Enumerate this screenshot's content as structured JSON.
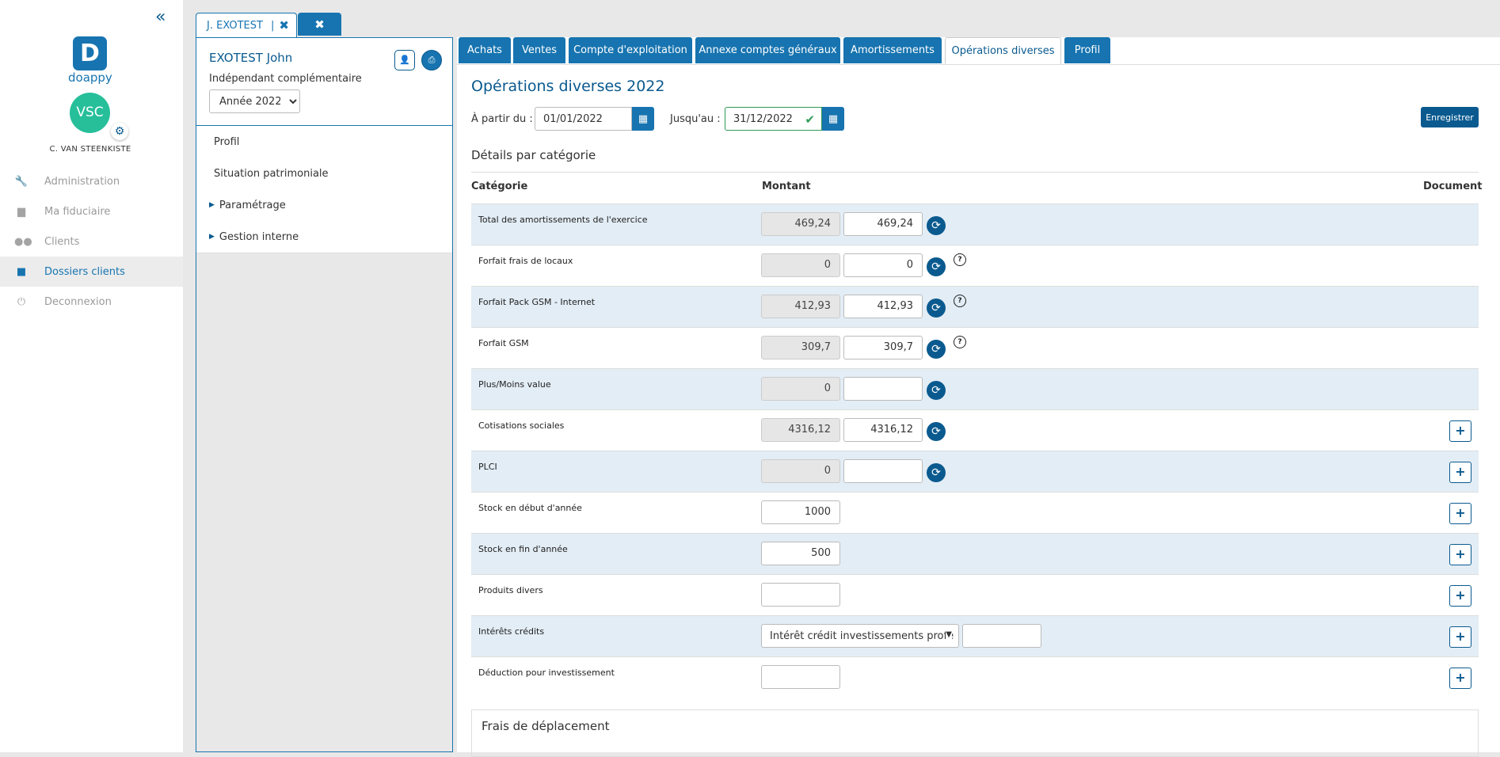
{
  "nav": {
    "collapse_icon": "double-chevron-left-icon",
    "logo_letter": "D",
    "logo_text": "doappy",
    "avatar_initials": "VSC",
    "user_name": "C. VAN STEENKISTE",
    "items": [
      {
        "label": "Administration",
        "icon": "wrench-icon"
      },
      {
        "label": "Ma fiduciaire",
        "icon": "building-icon"
      },
      {
        "label": "Clients",
        "icon": "users-icon"
      },
      {
        "label": "Dossiers clients",
        "icon": "folder-icon",
        "active": true
      },
      {
        "label": "Deconnexion",
        "icon": "power-icon"
      }
    ]
  },
  "dossier_tabs": [
    {
      "label": "J. EXOTEST"
    }
  ],
  "client": {
    "name": "EXOTEST John",
    "status": "Indépendant complémentaire",
    "year": "Année 2022",
    "menu": [
      {
        "label": "Profil"
      },
      {
        "label": "Situation patrimoniale"
      },
      {
        "label": "Paramétrage",
        "expandable": true
      },
      {
        "label": "Gestion interne",
        "expandable": true
      }
    ]
  },
  "tabs": [
    {
      "label": "Achats"
    },
    {
      "label": "Ventes"
    },
    {
      "label": "Compte d'exploitation"
    },
    {
      "label": "Annexe comptes généraux"
    },
    {
      "label": "Amortissements"
    },
    {
      "label": "Opérations diverses",
      "active": true
    },
    {
      "label": "Profil"
    }
  ],
  "page": {
    "title": "Opérations diverses 2022",
    "from_label": "À partir du :",
    "from_value": "01/01/2022",
    "to_label": "Jusqu'au :",
    "to_value": "31/12/2022",
    "save_label": "Enregistrer",
    "section_title": "Détails par catégorie",
    "col_category": "Catégorie",
    "col_amount": "Montant",
    "col_document": "Document",
    "travel_title": "Frais de déplacement"
  },
  "rows": [
    {
      "label": "Total des amortissements de l'exercice",
      "readonly": "469,24",
      "value": "469,24",
      "help": false,
      "doc": false
    },
    {
      "label": "Forfait frais de locaux",
      "readonly": "0",
      "value": "0",
      "help": true,
      "doc": false
    },
    {
      "label": "Forfait Pack GSM - Internet",
      "readonly": "412,93",
      "value": "412,93",
      "help": true,
      "doc": false
    },
    {
      "label": "Forfait GSM",
      "readonly": "309,7",
      "value": "309,7",
      "help": true,
      "doc": false
    },
    {
      "label": "Plus/Moins value",
      "readonly": "0",
      "value": "",
      "help": false,
      "doc": false
    },
    {
      "label": "Cotisations sociales",
      "readonly": "4316,12",
      "value": "4316,12",
      "help": false,
      "doc": true
    },
    {
      "label": "PLCI",
      "readonly": "0",
      "value": "",
      "help": false,
      "doc": true
    },
    {
      "label": "Stock en début d'année",
      "value": "1000",
      "doc": true
    },
    {
      "label": "Stock en fin d'année",
      "value": "500",
      "doc": true
    },
    {
      "label": "Produits divers",
      "value": "",
      "doc": true
    },
    {
      "label": "Intérêts crédits",
      "select": "Intérêt crédit investissements profe",
      "value": "",
      "doc": true
    },
    {
      "label": "Déduction pour investissement",
      "value": "",
      "doc": true
    }
  ],
  "colors": {
    "primary": "#1774b0",
    "dark_primary": "#0a5a8f",
    "avatar": "#26bf9a",
    "row_alt": "#e3edf5",
    "valid": "#2e9b57"
  }
}
